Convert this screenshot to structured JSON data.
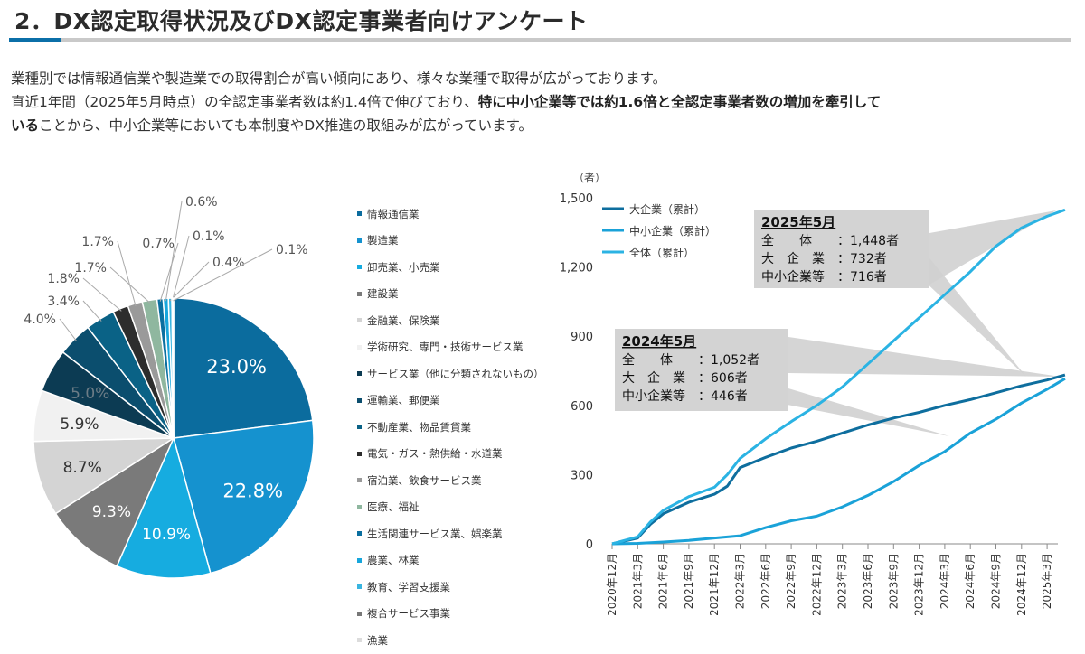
{
  "header": {
    "title": "2．DX認定取得状況及びDX認定事業者向けアンケート"
  },
  "body_text": {
    "line1": "業種別では情報通信業や製造業での取得割合が高い傾向にあり、様々な業種で取得が広がっております。",
    "line2_plain": "直近1年間（2025年5月時点）の全認定事業者数は約1.4倍で伸びており、",
    "line2_bold": "特に中小企業等では約1.6倍と全認定事業者数の増加を牽引して",
    "line3_bold": "いる",
    "line3_plain": "ことから、中小企業等においても本制度やDX推進の取組みが広がっています。"
  },
  "chart_data": [
    {
      "type": "pie",
      "slices": [
        {
          "name": "情報通信業",
          "value": 23.0,
          "label": "23.0%",
          "color": "#0b6c9e"
        },
        {
          "name": "製造業",
          "value": 22.8,
          "label": "22.8%",
          "color": "#1592cf"
        },
        {
          "name": "卸売業、小売業",
          "value": 10.9,
          "label": "10.9%",
          "color": "#16ace0"
        },
        {
          "name": "建設業",
          "value": 9.3,
          "label": "9.3%",
          "color": "#7a7a7a"
        },
        {
          "name": "金融業、保険業",
          "value": 8.7,
          "label": "8.7%",
          "color": "#d4d4d4"
        },
        {
          "name": "学術研究、専門・技術サービス業",
          "value": 5.9,
          "label": "5.9%",
          "color": "#f1f1f1"
        },
        {
          "name": "サービス業（他に分類されないもの）",
          "value": 5.0,
          "label": "5.0%",
          "color": "#0c3b53"
        },
        {
          "name": "運輸業、郵便業",
          "value": 4.0,
          "label": "4.0%",
          "color": "#0b4e6e"
        },
        {
          "name": "不動産業、物品賃貸業",
          "value": 3.4,
          "label": "3.4%",
          "color": "#0a6286"
        },
        {
          "name": "電気・ガス・熱供給・水道業",
          "value": 1.8,
          "label": "1.8%",
          "color": "#2d2d2d"
        },
        {
          "name": "宿泊業、飲食サービス業",
          "value": 1.7,
          "label": "1.7%",
          "color": "#9a9a9a"
        },
        {
          "name": "医療、福祉",
          "value": 1.7,
          "label": "1.7%",
          "color": "#8fb79f"
        },
        {
          "name": "生活関連サービス業、娯楽業",
          "value": 0.7,
          "label": "0.7%",
          "color": "#0a6fa0"
        },
        {
          "name": "農業、林業",
          "value": 0.6,
          "label": "0.6%",
          "color": "#17a6dc"
        },
        {
          "name": "教育、学習支援業",
          "value": 0.4,
          "label": "0.4%",
          "color": "#39b5e0"
        },
        {
          "name": "複合サービス事業",
          "value": 0.1,
          "label": "0.1%",
          "color": "#777777"
        },
        {
          "name": "漁業",
          "value": 0.1,
          "label": "0.1%",
          "color": "#dcdcdc"
        }
      ]
    },
    {
      "type": "line",
      "unit": "（者）",
      "ylim": [
        0,
        1500
      ],
      "yticks": [
        0,
        300,
        600,
        900,
        1200,
        1500
      ],
      "ytick_labels": [
        "0",
        "300",
        "600",
        "900",
        "1,200",
        "1,500"
      ],
      "x_labels": [
        "2020年12月",
        "2021年3月",
        "2021年6月",
        "2021年9月",
        "2021年12月",
        "2022年3月",
        "2022年6月",
        "2022年9月",
        "2022年12月",
        "2023年3月",
        "2023年6月",
        "2023年9月",
        "2023年12月",
        "2024年3月",
        "2024年6月",
        "2024年9月",
        "2024年12月",
        "2025年3月"
      ],
      "series": [
        {
          "name": "大企業（累計）",
          "color": "#0e6e9e",
          "x": [
            0,
            1,
            1.5,
            2,
            3,
            4,
            4.5,
            5,
            6,
            7,
            8,
            9,
            10,
            11,
            12,
            13,
            14,
            15,
            16,
            17,
            17.7
          ],
          "values": [
            0,
            25,
            85,
            130,
            180,
            215,
            250,
            330,
            375,
            415,
            445,
            480,
            515,
            545,
            570,
            600,
            625,
            655,
            685,
            710,
            732
          ]
        },
        {
          "name": "中小企業（累計）",
          "color": "#1aa2d8",
          "x": [
            0,
            1,
            2,
            3,
            4,
            5,
            6,
            7,
            8,
            9,
            10,
            11,
            12,
            13,
            14,
            15,
            16,
            17,
            17.7
          ],
          "values": [
            0,
            2,
            8,
            15,
            25,
            35,
            70,
            100,
            120,
            160,
            210,
            270,
            340,
            400,
            480,
            540,
            610,
            670,
            716
          ]
        },
        {
          "name": "全体（累計）",
          "color": "#2bb3e3",
          "x": [
            0,
            1,
            1.5,
            2,
            3,
            4,
            4.5,
            5,
            6,
            7,
            8,
            9,
            10,
            11,
            12,
            13,
            14,
            15,
            16,
            17,
            17.7
          ],
          "values": [
            0,
            30,
            95,
            145,
            205,
            245,
            300,
            370,
            455,
            530,
            600,
            680,
            780,
            880,
            980,
            1080,
            1180,
            1290,
            1370,
            1420,
            1448
          ]
        }
      ],
      "annotations": [
        {
          "title": "2025年5月",
          "lines": [
            {
              "label": "全　　体",
              "value": "1,448者"
            },
            {
              "label": "大　企　業",
              "value": "732者"
            },
            {
              "label": "中小企業等",
              "value": "716者"
            }
          ]
        },
        {
          "title": "2024年5月",
          "lines": [
            {
              "label": "全　　体",
              "value": "1,052者"
            },
            {
              "label": "大　企　業",
              "value": "606者"
            },
            {
              "label": "中小企業等",
              "value": "446者"
            }
          ]
        }
      ]
    }
  ]
}
